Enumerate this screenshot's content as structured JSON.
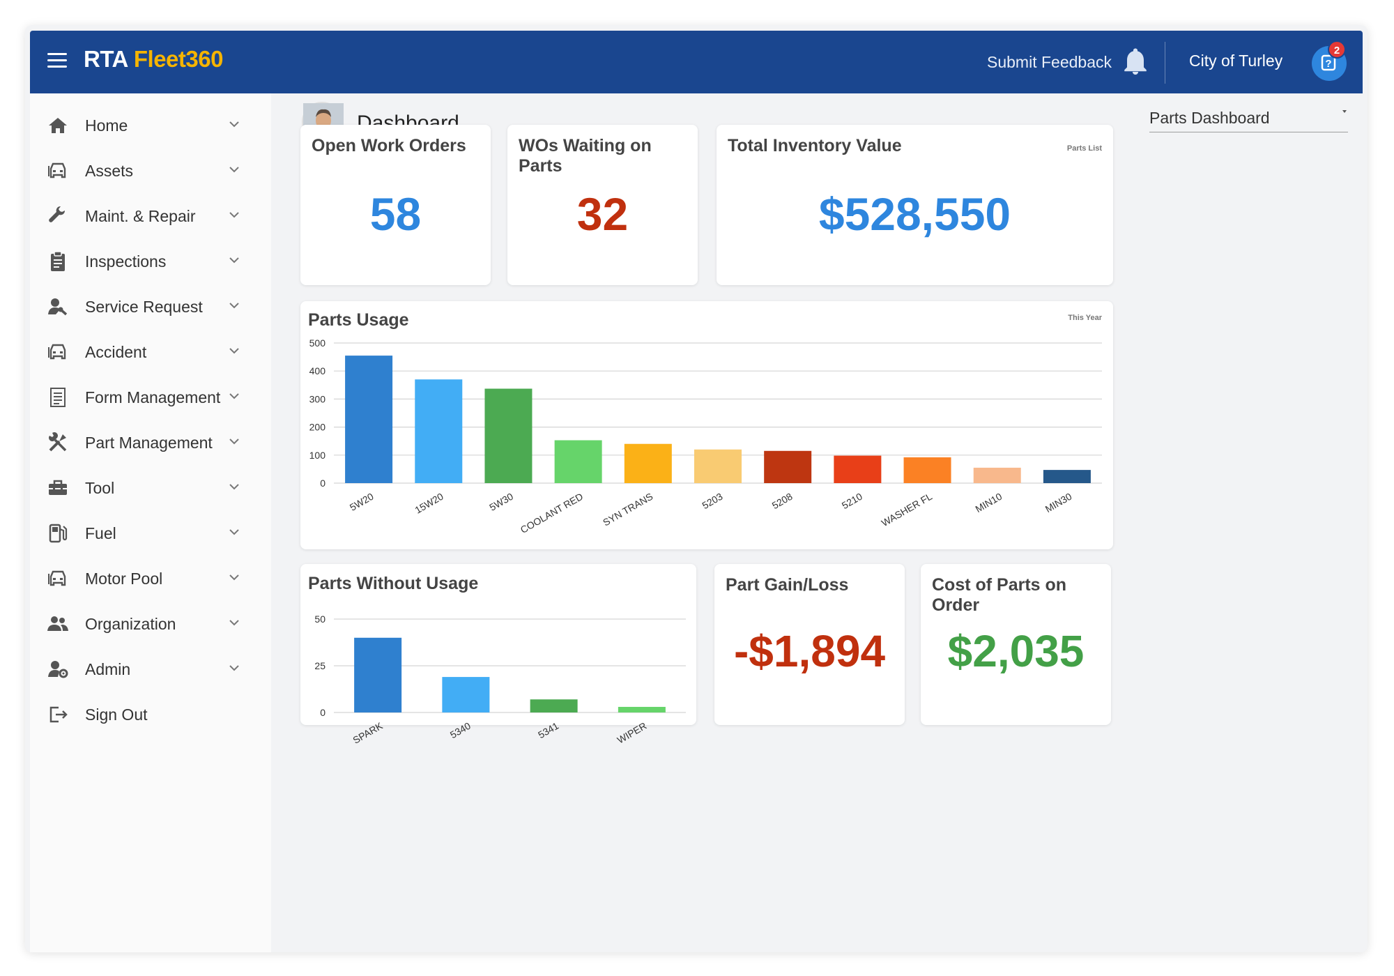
{
  "app": {
    "brand_part1": "RTA",
    "brand_part2": "Fleet360",
    "feedback_label": "Submit Feedback",
    "org_name": "City of Turley",
    "help_badge": "2"
  },
  "sidebar": {
    "items": [
      {
        "label": "Home",
        "icon": "home-icon"
      },
      {
        "label": "Assets",
        "icon": "car-icon"
      },
      {
        "label": "Maint. & Repair",
        "icon": "wrench-icon"
      },
      {
        "label": "Inspections",
        "icon": "clipboard-icon"
      },
      {
        "label": "Service Request",
        "icon": "user-wrench-icon"
      },
      {
        "label": "Accident",
        "icon": "car-icon"
      },
      {
        "label": "Form Management",
        "icon": "form-icon"
      },
      {
        "label": "Part Management",
        "icon": "tools-icon"
      },
      {
        "label": "Tool",
        "icon": "toolbox-icon"
      },
      {
        "label": "Fuel",
        "icon": "fuel-icon"
      },
      {
        "label": "Motor Pool",
        "icon": "car-icon"
      },
      {
        "label": "Organization",
        "icon": "people-icon"
      },
      {
        "label": "Admin",
        "icon": "user-gear-icon"
      },
      {
        "label": "Sign Out",
        "icon": "sign-out-icon"
      }
    ]
  },
  "header": {
    "title": "Dashboard",
    "dashboard_select": "Parts Dashboard"
  },
  "kpis": {
    "open_work_orders": {
      "title": "Open Work Orders",
      "value": "58",
      "color": "#2e86de"
    },
    "wos_waiting": {
      "title": "WOs Waiting on Parts",
      "value": "32",
      "color": "#c0300e"
    },
    "inventory": {
      "title": "Total Inventory Value",
      "value": "$528,550",
      "link": "Parts List",
      "color": "#2e86de"
    },
    "gain_loss": {
      "title": "Part Gain/Loss",
      "value": "-$1,894",
      "color": "#c0300e"
    },
    "on_order": {
      "title": "Cost of Parts on Order",
      "value": "$2,035",
      "color": "#43a047"
    }
  },
  "parts_usage": {
    "title": "Parts Usage",
    "period": "This Year"
  },
  "parts_without_usage": {
    "title": "Parts Without Usage"
  },
  "chart_data": [
    {
      "type": "bar",
      "title": "Parts Usage",
      "categories": [
        "5W20",
        "15W20",
        "5W30",
        "COOLANT RED",
        "SYN TRANS",
        "5203",
        "5208",
        "5210",
        "WASHER FL",
        "MIN10",
        "MIN30"
      ],
      "values": [
        455,
        370,
        337,
        153,
        140,
        120,
        115,
        98,
        92,
        55,
        47
      ],
      "colors": [
        "#2f80cf",
        "#42adf5",
        "#4caa52",
        "#66d46a",
        "#fbb117",
        "#f9cb72",
        "#be3611",
        "#e83f18",
        "#fb8124",
        "#f8b88c",
        "#25588a"
      ],
      "yticks": [
        0,
        100,
        200,
        300,
        400,
        500
      ],
      "ylim": [
        0,
        500
      ]
    },
    {
      "type": "bar",
      "title": "Parts Without Usage",
      "categories": [
        "SPARK",
        "5340",
        "5341",
        "WIPER"
      ],
      "values": [
        40,
        19,
        7,
        3
      ],
      "colors": [
        "#2f80cf",
        "#42adf5",
        "#4caa52",
        "#66d46a"
      ],
      "yticks": [
        0,
        25,
        50
      ],
      "ylim": [
        0,
        50
      ]
    }
  ]
}
